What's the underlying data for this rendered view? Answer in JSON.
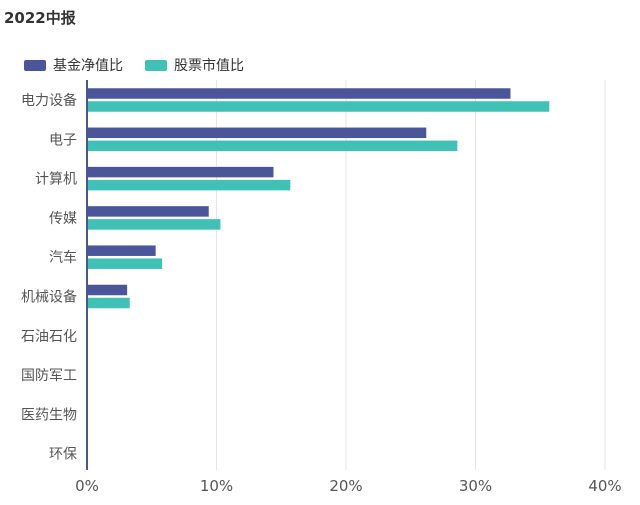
{
  "title": "2022中报",
  "chart_data": {
    "type": "bar",
    "orientation": "horizontal",
    "title": "2022中报",
    "categories": [
      "电力设备",
      "电子",
      "计算机",
      "传媒",
      "汽车",
      "机械设备",
      "石油石化",
      "国防军工",
      "医药生物",
      "环保"
    ],
    "series": [
      {
        "name": "基金净值比",
        "color": "#4a5699",
        "values": [
          32.7,
          26.2,
          14.4,
          9.4,
          5.3,
          3.1,
          0,
          0,
          0,
          0
        ]
      },
      {
        "name": "股票市值比",
        "color": "#3fc1b5",
        "values": [
          35.7,
          28.6,
          15.7,
          10.3,
          5.8,
          3.3,
          0,
          0,
          0,
          0
        ]
      }
    ],
    "xlim": [
      0,
      40
    ],
    "xticks": [
      "0%",
      "10%",
      "20%",
      "30%",
      "40%"
    ],
    "xtick_values": [
      0,
      10,
      20,
      30,
      40
    ],
    "legend_position": "top-left",
    "grid": "vertical"
  }
}
